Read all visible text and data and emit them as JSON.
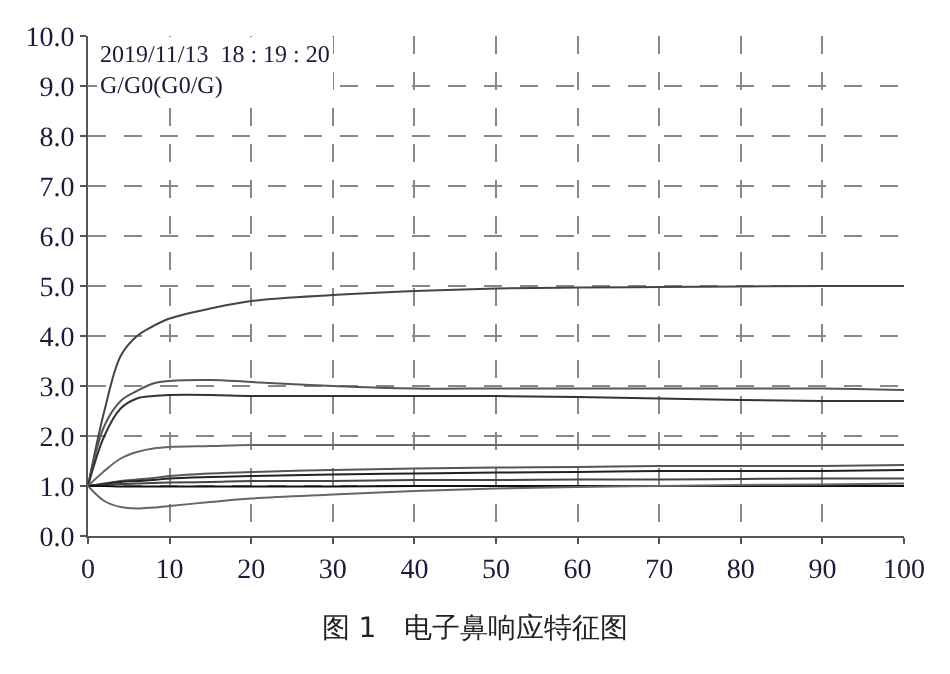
{
  "chart_data": {
    "type": "line",
    "title": "图 1　电子鼻响应特征图",
    "ylabel": "G/G0(G0/G)",
    "annotations": [
      "2019/11/13  18 : 19 : 20"
    ],
    "x": [
      0,
      2,
      4,
      6,
      8,
      10,
      15,
      20,
      30,
      40,
      50,
      60,
      70,
      80,
      90,
      100
    ],
    "series": [
      {
        "color": "#444444",
        "values": [
          1,
          2.5,
          3.6,
          4.0,
          4.2,
          4.35,
          4.55,
          4.7,
          4.82,
          4.9,
          4.95,
          4.97,
          4.98,
          4.99,
          5.0,
          5.0
        ]
      },
      {
        "color": "#555555",
        "values": [
          1,
          2.2,
          2.7,
          2.9,
          3.05,
          3.1,
          3.12,
          3.08,
          3.0,
          2.95,
          2.95,
          2.95,
          2.95,
          2.95,
          2.95,
          2.92
        ]
      },
      {
        "color": "#333333",
        "values": [
          1,
          2.0,
          2.55,
          2.75,
          2.8,
          2.82,
          2.82,
          2.8,
          2.8,
          2.8,
          2.8,
          2.78,
          2.75,
          2.72,
          2.7,
          2.7
        ]
      },
      {
        "color": "#666666",
        "values": [
          1,
          1.3,
          1.55,
          1.68,
          1.75,
          1.78,
          1.8,
          1.82,
          1.82,
          1.82,
          1.82,
          1.82,
          1.82,
          1.82,
          1.82,
          1.82
        ]
      },
      {
        "color": "#555555",
        "values": [
          1,
          1.05,
          1.1,
          1.13,
          1.16,
          1.2,
          1.25,
          1.28,
          1.32,
          1.35,
          1.37,
          1.38,
          1.4,
          1.4,
          1.4,
          1.42
        ]
      },
      {
        "color": "#222222",
        "values": [
          1,
          1.04,
          1.08,
          1.1,
          1.12,
          1.15,
          1.18,
          1.2,
          1.23,
          1.25,
          1.27,
          1.28,
          1.3,
          1.3,
          1.3,
          1.32
        ]
      },
      {
        "color": "#444444",
        "values": [
          1,
          1.02,
          1.04,
          1.05,
          1.06,
          1.07,
          1.08,
          1.1,
          1.1,
          1.12,
          1.12,
          1.13,
          1.13,
          1.14,
          1.15,
          1.15
        ]
      },
      {
        "color": "#111111",
        "values": [
          1,
          1,
          0.99,
          0.99,
          0.99,
          0.99,
          0.99,
          0.99,
          0.99,
          1,
          1,
          1,
          1,
          1,
          1,
          1
        ]
      },
      {
        "color": "#666666",
        "values": [
          1,
          0.7,
          0.58,
          0.55,
          0.57,
          0.6,
          0.68,
          0.75,
          0.83,
          0.9,
          0.95,
          0.98,
          1.0,
          1.02,
          1.03,
          1.05
        ]
      }
    ],
    "xlim": [
      0,
      100
    ],
    "xticks": [
      0,
      10,
      20,
      30,
      40,
      50,
      60,
      70,
      80,
      90,
      100
    ],
    "ylim": [
      0,
      10
    ],
    "yticks": [
      {
        "value": 0,
        "label": "0.0"
      },
      {
        "value": 1,
        "label": "1.0"
      },
      {
        "value": 2,
        "label": "2.0"
      },
      {
        "value": 3,
        "label": "3.0"
      },
      {
        "value": 4,
        "label": "4.0"
      },
      {
        "value": 5,
        "label": "5.0"
      },
      {
        "value": 6,
        "label": "6.0"
      },
      {
        "value": 7,
        "label": "7.0"
      },
      {
        "value": 8,
        "label": "8.0"
      },
      {
        "value": 9,
        "label": "9.0"
      },
      {
        "value": 10,
        "label": "10.0"
      }
    ],
    "grid": true,
    "marker": "none",
    "line_style": "solid"
  }
}
